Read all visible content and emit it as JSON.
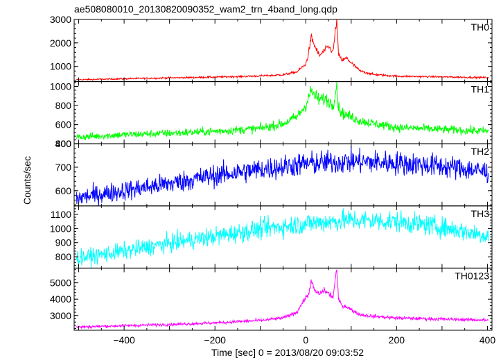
{
  "chart_data": {
    "type": "line",
    "title": "ae508080010_20130820090352_wam2_trn_4band_long.qdp",
    "xlabel": "Time [sec] 0 = 2013/08/20 09:03:52",
    "ylabel": "Counts/sec",
    "xlim": [
      -510,
      410
    ],
    "x_ticks": [
      -400,
      -200,
      0,
      200,
      400
    ],
    "grid": false,
    "legend": "none",
    "panels": [
      {
        "name": "TH0",
        "color": "#ff0000",
        "ylim": [
          350,
          3000
        ],
        "y_ticks": [
          1000,
          2000,
          3000
        ],
        "x": [
          -500,
          -400,
          -300,
          -200,
          -100,
          -50,
          -20,
          0,
          5,
          12,
          20,
          30,
          40,
          50,
          60,
          68,
          72,
          80,
          90,
          100,
          120,
          150,
          200,
          300,
          400
        ],
        "y": [
          430,
          470,
          510,
          540,
          590,
          640,
          760,
          1100,
          1450,
          2250,
          1850,
          1450,
          1650,
          1850,
          1600,
          3000,
          1500,
          1250,
          1350,
          1150,
          800,
          650,
          580,
          550,
          520
        ],
        "noise": 0.035
      },
      {
        "name": "TH1",
        "color": "#00ff00",
        "ylim": [
          400,
          1050
        ],
        "y_ticks": [
          400,
          600,
          800,
          1000
        ],
        "x": [
          -500,
          -400,
          -300,
          -200,
          -100,
          -50,
          -20,
          0,
          5,
          12,
          20,
          30,
          40,
          50,
          60,
          68,
          72,
          80,
          90,
          100,
          120,
          150,
          200,
          300,
          400
        ],
        "y": [
          470,
          495,
          510,
          530,
          560,
          610,
          680,
          800,
          880,
          950,
          900,
          860,
          870,
          850,
          800,
          1030,
          780,
          720,
          700,
          680,
          640,
          610,
          570,
          550,
          530
        ],
        "noise": 0.04
      },
      {
        "name": "TH2",
        "color": "#0000ff",
        "ylim": [
          535,
          800
        ],
        "y_ticks": [
          600,
          700,
          800
        ],
        "x": [
          -500,
          -400,
          -300,
          -200,
          -100,
          0,
          100,
          200,
          300,
          400
        ],
        "y": [
          570,
          600,
          630,
          665,
          690,
          715,
          725,
          718,
          705,
          680
        ],
        "noise": 0.035
      },
      {
        "name": "TH3",
        "color": "#00ffff",
        "ylim": [
          720,
          1160
        ],
        "y_ticks": [
          800,
          900,
          1000,
          1100
        ],
        "x": [
          -500,
          -400,
          -300,
          -200,
          -100,
          0,
          100,
          200,
          300,
          400
        ],
        "y": [
          790,
          840,
          895,
          945,
          995,
          1035,
          1060,
          1050,
          1010,
          950
        ],
        "noise": 0.035
      },
      {
        "name": "TH0123",
        "color": "#ff00ff",
        "ylim": [
          2100,
          5900
        ],
        "y_ticks": [
          3000,
          4000,
          5000
        ],
        "x": [
          -500,
          -400,
          -300,
          -200,
          -100,
          -50,
          -20,
          0,
          5,
          12,
          20,
          30,
          40,
          50,
          60,
          68,
          72,
          80,
          90,
          100,
          120,
          150,
          200,
          300,
          400
        ],
        "y": [
          2300,
          2380,
          2450,
          2550,
          2700,
          2850,
          3200,
          4100,
          4200,
          5100,
          4500,
          4300,
          4550,
          4350,
          4100,
          5900,
          4000,
          3600,
          3550,
          3350,
          3050,
          2950,
          2850,
          2780,
          2720
        ],
        "noise": 0.018
      }
    ]
  }
}
